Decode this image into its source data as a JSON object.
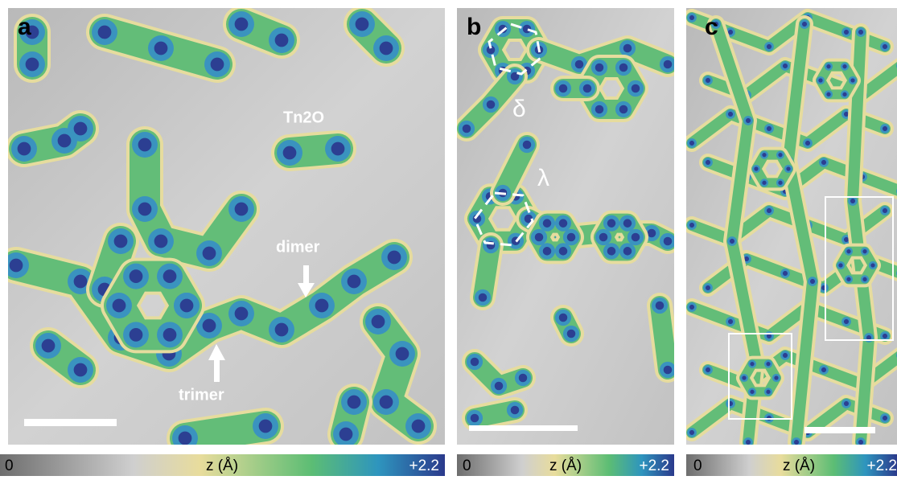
{
  "panels": [
    {
      "label": "a",
      "annotations": [
        "Tn2O",
        "dimer",
        "trimer"
      ],
      "colorbar": {
        "min": "0",
        "axis_label": "z (Å)",
        "max": "+2.2"
      }
    },
    {
      "label": "b",
      "annotations": [
        "δ",
        "λ"
      ],
      "colorbar": {
        "min": "0",
        "axis_label": "z (Å)",
        "max": "+2.2"
      }
    },
    {
      "label": "c",
      "annotations": [],
      "colorbar": {
        "min": "0",
        "axis_label": "z (Å)",
        "max": "+2.2"
      }
    }
  ]
}
